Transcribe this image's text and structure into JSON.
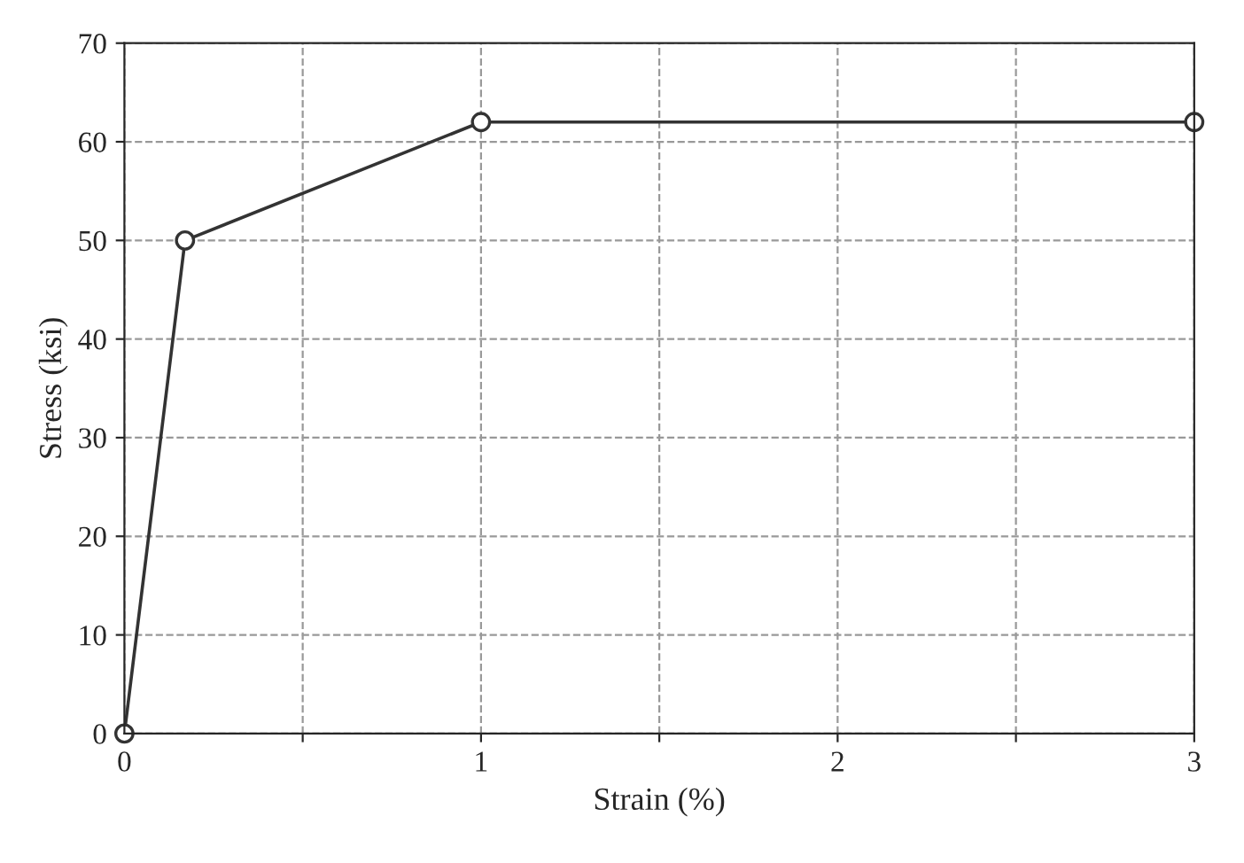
{
  "chart_data": {
    "type": "line",
    "xlabel": "Strain (%)",
    "ylabel": "Stress (ksi)",
    "x": [
      0,
      0.17,
      1,
      3
    ],
    "series": [
      {
        "color": "#333333",
        "values": [
          0,
          50,
          62,
          62
        ]
      }
    ],
    "xlim": [
      0,
      3
    ],
    "ylim": [
      0,
      70
    ],
    "xticks": [
      0,
      {
        "value": 0.5,
        "label": null
      },
      1,
      {
        "value": 1.5,
        "label": null
      },
      2,
      {
        "value": 2.5,
        "label": null
      },
      3
    ],
    "yticks": [
      0,
      10,
      20,
      30,
      40,
      50,
      60,
      70
    ],
    "grid": true,
    "marker": "circle",
    "line_style": "solid"
  }
}
